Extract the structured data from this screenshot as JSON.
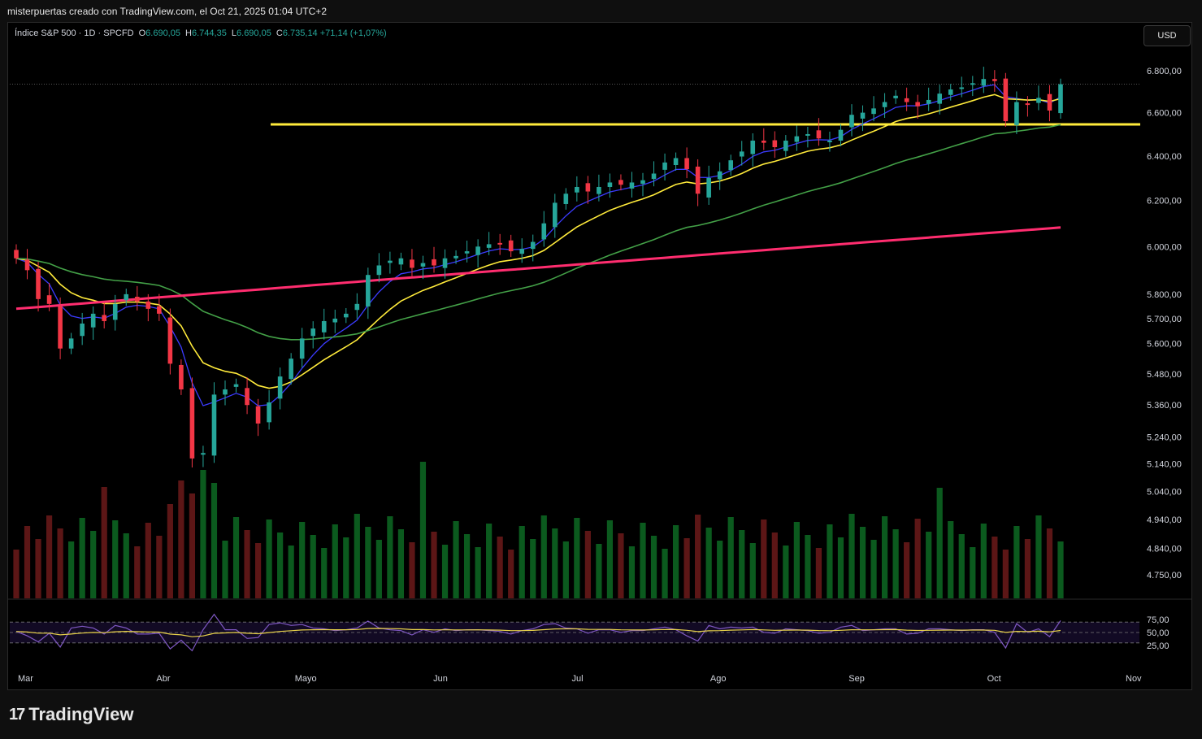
{
  "caption": "misterpuertas creado con TradingView.com, el Oct 21, 2025 01:04 UTC+2",
  "symbol": {
    "name": "Índice S&P 500 · 1D · SPCFD",
    "open_key": "O",
    "open": "6.690,05",
    "high_key": "H",
    "high": "6.744,35",
    "low_key": "L",
    "low": "6.690,05",
    "close_key": "C",
    "close": "6.735,14",
    "change": "+71,14 (+1,07%)"
  },
  "currency_button": "USD",
  "brand": {
    "name": "TradingView",
    "mark": "17"
  },
  "colors": {
    "up": "#26a69a",
    "down": "#f23645",
    "vol_up": "#0b5a1e",
    "vol_down": "#5c1616",
    "ema_fast": "#3b3bff",
    "ema_mid": "#ffeb3b",
    "ma_50": "#43a047",
    "ma_200": "#ff2d6f",
    "support": "#ffeb3b",
    "rsi": "#7e57c2",
    "rsi_ma": "#e8d24a"
  },
  "chart_data": {
    "type": "candlestick",
    "x_labels": [
      "Mar",
      "Abr",
      "Mayo",
      "Jun",
      "Jul",
      "Ago",
      "Sep",
      "Oct",
      "Nov"
    ],
    "y_ticks": [
      "6.800,00",
      "6.600,00",
      "6.400,00",
      "6.200,00",
      "6.000,00",
      "5.800,00",
      "5.700,00",
      "5.600,00",
      "5.480,00",
      "5.360,00",
      "5.240,00",
      "5.140,00",
      "5.040,00",
      "4.940,00",
      "4.840,00",
      "4.750,00"
    ],
    "y_range": [
      4750,
      6800
    ],
    "log_scale": true,
    "support_level": 6545,
    "last_price": 6735.14,
    "close_series": [
      5950,
      5900,
      5780,
      5760,
      5580,
      5620,
      5680,
      5720,
      5690,
      5760,
      5800,
      5770,
      5740,
      5720,
      5520,
      5420,
      5160,
      5180,
      5400,
      5420,
      5440,
      5360,
      5290,
      5370,
      5470,
      5540,
      5620,
      5660,
      5690,
      5700,
      5720,
      5760,
      5880,
      5920,
      5940,
      5950,
      5910,
      5930,
      5920,
      5950,
      5960,
      5980,
      6000,
      6010,
      6010,
      5980,
      5990,
      6020,
      6100,
      6190,
      6230,
      6260,
      6240,
      6260,
      6280,
      6270,
      6280,
      6290,
      6320,
      6370,
      6390,
      6340,
      6230,
      6300,
      6330,
      6380,
      6420,
      6470,
      6460,
      6440,
      6470,
      6490,
      6500,
      6480,
      6470,
      6520,
      6590,
      6600,
      6620,
      6650,
      6680,
      6650,
      6630,
      6660,
      6690,
      6710,
      6720,
      6740,
      6760,
      6750,
      6560,
      6650,
      6640,
      6670,
      6610,
      6735
    ],
    "rsi": {
      "ticks": [
        "75,00",
        "50,00",
        "25,00"
      ],
      "range": [
        0,
        100
      ],
      "upper_band": 70,
      "lower_band": 30
    }
  }
}
